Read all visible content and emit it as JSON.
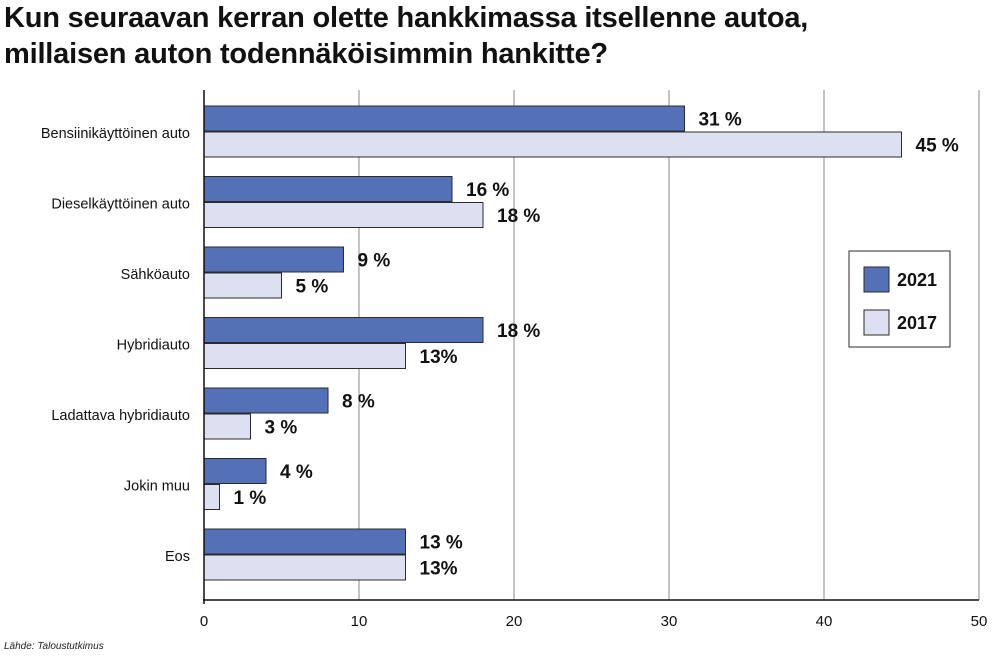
{
  "chart_data": {
    "type": "bar",
    "orientation": "horizontal",
    "title_lines": [
      "Kun seuraavan kerran olette hankkimassa itsellenne autoa,",
      "millaisen auton todennäköisimmin hankitte?"
    ],
    "categories": [
      "Bensiinikäyttöinen  auto",
      "Dieselkäyttöinen auto",
      "Sähköauto",
      "Hybridiauto",
      "Ladattava hybridiauto",
      "Jokin muu",
      "Eos"
    ],
    "series": [
      {
        "name": "2021",
        "color": "#5470b6",
        "values": [
          31,
          16,
          9,
          18,
          8,
          4,
          13
        ],
        "labels": [
          "31 %",
          "16 %",
          "9 %",
          "18 %",
          "8 %",
          "4 %",
          "13 %"
        ]
      },
      {
        "name": "2017",
        "color": "#dde0f1",
        "values": [
          45,
          18,
          5,
          13,
          3,
          1,
          13
        ],
        "labels": [
          "45 %",
          "18 %",
          "5 %",
          "13%",
          "3 %",
          "1 %",
          "13%"
        ]
      }
    ],
    "xlim": [
      0,
      50
    ],
    "xticks": [
      0,
      10,
      20,
      30,
      40,
      50
    ],
    "xtick_labels": [
      "0",
      "10",
      "20",
      "30",
      "40",
      "50"
    ],
    "grid": true,
    "legend_position": "right"
  },
  "source": "Lähde: Taloustutkimus"
}
